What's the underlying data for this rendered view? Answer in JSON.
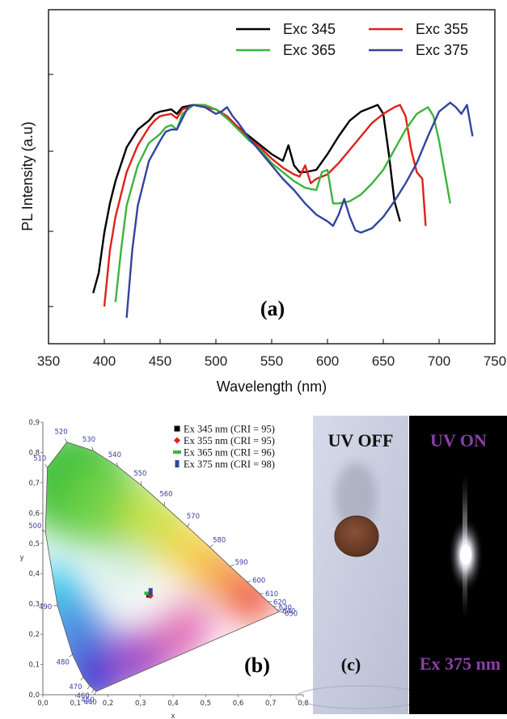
{
  "chart_data": [
    {
      "type": "line",
      "panel_label": "(a)",
      "xlabel": "Wavelength (nm)",
      "ylabel": "PL Intensity (a.u)",
      "xlim": [
        350,
        750
      ],
      "xticks": [
        "350",
        "400",
        "450",
        "500",
        "550",
        "600",
        "650",
        "700",
        "750"
      ],
      "legend_position": "top-right",
      "series": [
        {
          "name": "Exc 345",
          "color": "#000000",
          "x": [
            390,
            395,
            400,
            405,
            410,
            420,
            430,
            440,
            445,
            450,
            460,
            465,
            470,
            480,
            490,
            500,
            510,
            520,
            530,
            540,
            550,
            560,
            565,
            570,
            575,
            580,
            590,
            600,
            610,
            620,
            630,
            640,
            645,
            650,
            655,
            660,
            665
          ],
          "y": [
            0.06,
            0.15,
            0.33,
            0.46,
            0.56,
            0.71,
            0.79,
            0.83,
            0.86,
            0.87,
            0.88,
            0.86,
            0.89,
            0.9,
            0.89,
            0.88,
            0.84,
            0.8,
            0.76,
            0.72,
            0.68,
            0.65,
            0.72,
            0.63,
            0.6,
            0.6,
            0.61,
            0.68,
            0.76,
            0.83,
            0.87,
            0.89,
            0.9,
            0.86,
            0.68,
            0.47,
            0.38
          ]
        },
        {
          "name": "Exc 355",
          "color": "#e0201a",
          "x": [
            400,
            405,
            410,
            420,
            430,
            440,
            445,
            450,
            460,
            465,
            470,
            480,
            490,
            500,
            510,
            520,
            530,
            540,
            550,
            560,
            570,
            575,
            580,
            585,
            590,
            600,
            610,
            620,
            630,
            640,
            650,
            660,
            665,
            670,
            675,
            680,
            685,
            688
          ],
          "y": [
            0.0,
            0.25,
            0.4,
            0.6,
            0.72,
            0.8,
            0.83,
            0.85,
            0.86,
            0.84,
            0.88,
            0.9,
            0.89,
            0.88,
            0.85,
            0.8,
            0.75,
            0.71,
            0.66,
            0.62,
            0.59,
            0.58,
            0.63,
            0.55,
            0.57,
            0.59,
            0.64,
            0.7,
            0.76,
            0.82,
            0.86,
            0.89,
            0.9,
            0.85,
            0.7,
            0.6,
            0.57,
            0.36
          ]
        },
        {
          "name": "Exc 365",
          "color": "#3cb43c",
          "x": [
            410,
            415,
            420,
            430,
            440,
            450,
            455,
            460,
            465,
            470,
            480,
            490,
            500,
            510,
            520,
            530,
            540,
            550,
            560,
            570,
            580,
            590,
            595,
            600,
            605,
            610,
            620,
            630,
            640,
            650,
            660,
            670,
            680,
            690,
            695,
            700,
            705,
            710
          ],
          "y": [
            0.02,
            0.25,
            0.45,
            0.63,
            0.73,
            0.77,
            0.8,
            0.81,
            0.79,
            0.86,
            0.9,
            0.9,
            0.88,
            0.84,
            0.79,
            0.74,
            0.7,
            0.64,
            0.6,
            0.56,
            0.53,
            0.52,
            0.6,
            0.61,
            0.46,
            0.46,
            0.47,
            0.5,
            0.55,
            0.61,
            0.7,
            0.79,
            0.86,
            0.89,
            0.85,
            0.74,
            0.6,
            0.46
          ]
        },
        {
          "name": "Exc 375",
          "color": "#33449e",
          "x": [
            420,
            425,
            430,
            440,
            450,
            455,
            460,
            465,
            470,
            475,
            480,
            490,
            500,
            505,
            510,
            515,
            520,
            530,
            540,
            550,
            560,
            570,
            580,
            590,
            600,
            605,
            610,
            615,
            620,
            625,
            630,
            640,
            650,
            660,
            670,
            680,
            690,
            700,
            710,
            715,
            720,
            725,
            730
          ],
          "y": [
            -0.05,
            0.25,
            0.45,
            0.65,
            0.74,
            0.78,
            0.79,
            0.79,
            0.84,
            0.89,
            0.9,
            0.89,
            0.86,
            0.87,
            0.89,
            0.85,
            0.82,
            0.75,
            0.69,
            0.63,
            0.57,
            0.52,
            0.46,
            0.41,
            0.38,
            0.36,
            0.41,
            0.48,
            0.4,
            0.34,
            0.33,
            0.35,
            0.4,
            0.47,
            0.55,
            0.64,
            0.76,
            0.87,
            0.91,
            0.89,
            0.86,
            0.9,
            0.76
          ]
        }
      ]
    },
    {
      "type": "scatter",
      "panel_label": "(b)",
      "xlabel": "x",
      "ylabel": "y",
      "xlim": [
        0,
        0.8
      ],
      "ylim": [
        0,
        0.9
      ],
      "xticks": [
        "0,0",
        "0,1",
        "0,2",
        "0,3",
        "0,4",
        "0,5",
        "0,6",
        "0,7",
        "0,8"
      ],
      "yticks": [
        "0,0",
        "0,1",
        "0,2",
        "0,3",
        "0,4",
        "0,5",
        "0,6",
        "0,7",
        "0,8",
        "0,9"
      ],
      "legend_position": "top-right",
      "points": [
        {
          "label": "Ex 345 nm (CRI = 95)",
          "x": 0.327,
          "y": 0.33,
          "color": "#000000",
          "marker": "square"
        },
        {
          "label": "Ex 355 nm (CRI = 95)",
          "x": 0.33,
          "y": 0.327,
          "color": "#e0201a",
          "marker": "diamond"
        },
        {
          "label": "Ex 365 nm (CRI = 96)",
          "x": 0.324,
          "y": 0.335,
          "color": "#3cb43c",
          "marker": "dash"
        },
        {
          "label": "Ex 375 nm (CRI = 98)",
          "x": 0.331,
          "y": 0.34,
          "color": "#33449e",
          "marker": "bar"
        }
      ],
      "locus": [
        {
          "nm": "440",
          "x": 0.164,
          "y": 0.011
        },
        {
          "nm": "450",
          "x": 0.157,
          "y": 0.018
        },
        {
          "nm": "460",
          "x": 0.144,
          "y": 0.03
        },
        {
          "nm": "470",
          "x": 0.124,
          "y": 0.058
        },
        {
          "nm": "480",
          "x": 0.091,
          "y": 0.133
        },
        {
          "nm": "490",
          "x": 0.045,
          "y": 0.295
        },
        {
          "nm": "500",
          "x": 0.008,
          "y": 0.538
        },
        {
          "nm": "510",
          "x": 0.014,
          "y": 0.75
        },
        {
          "nm": "520",
          "x": 0.074,
          "y": 0.834
        },
        {
          "nm": "530",
          "x": 0.155,
          "y": 0.806
        },
        {
          "nm": "540",
          "x": 0.23,
          "y": 0.754
        },
        {
          "nm": "550",
          "x": 0.302,
          "y": 0.692
        },
        {
          "nm": "560",
          "x": 0.373,
          "y": 0.624
        },
        {
          "nm": "570",
          "x": 0.444,
          "y": 0.555
        },
        {
          "nm": "580",
          "x": 0.513,
          "y": 0.487
        },
        {
          "nm": "590",
          "x": 0.575,
          "y": 0.424
        },
        {
          "nm": "600",
          "x": 0.627,
          "y": 0.373
        },
        {
          "nm": "610",
          "x": 0.666,
          "y": 0.334
        },
        {
          "nm": "620",
          "x": 0.691,
          "y": 0.308
        },
        {
          "nm": "630",
          "x": 0.708,
          "y": 0.292
        },
        {
          "nm": "640",
          "x": 0.719,
          "y": 0.281
        },
        {
          "nm": "650",
          "x": 0.726,
          "y": 0.274
        }
      ]
    }
  ],
  "photo": {
    "panel_label": "(c)",
    "off_label": "UV OFF",
    "on_label": "UV ON",
    "excitation_label": "Ex 375 nm",
    "colors": {
      "on_text": "#8a3fa8",
      "off_bg": "#c8cde0",
      "on_bg": "#000000",
      "pellet": "#7a4a30"
    }
  }
}
